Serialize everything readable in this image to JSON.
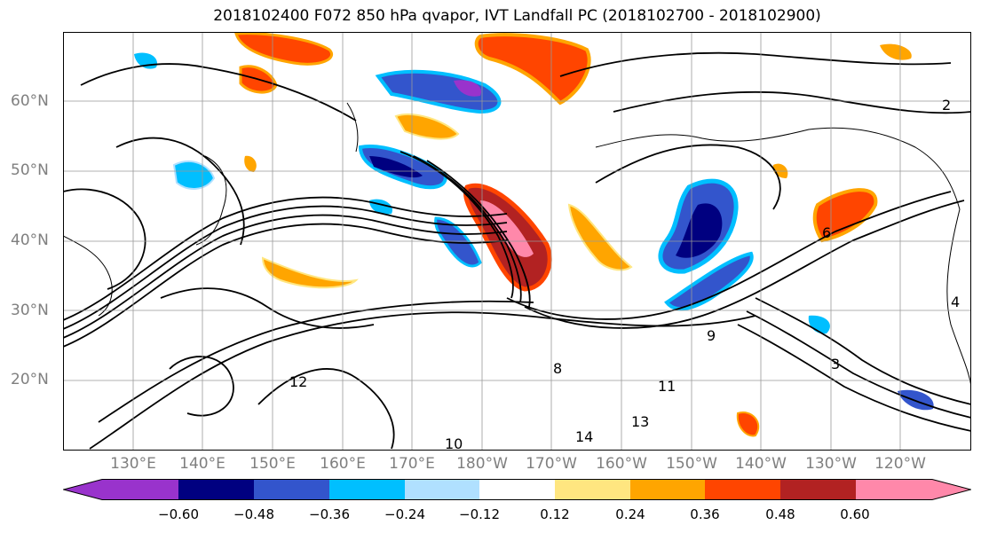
{
  "title": "2018102400 F072 850 hPa qvapor, IVT Landfall PC (2018102700 - 2018102900)",
  "lat_labels": [
    "60°N",
    "50°N",
    "40°N",
    "30°N",
    "20°N"
  ],
  "lon_labels": [
    "130°E",
    "140°E",
    "150°E",
    "160°E",
    "170°E",
    "180°W",
    "170°W",
    "160°W",
    "150°W",
    "140°W",
    "130°W",
    "120°W"
  ],
  "colorbar": {
    "colors": [
      "#9933cc",
      "#000080",
      "#3355cc",
      "#00bfff",
      "#b0e0ff",
      "#ffffff",
      "#ffe680",
      "#ffa500",
      "#ff4500",
      "#b22222",
      "#ff88aa"
    ],
    "tick_labels": [
      "−0.60",
      "−0.48",
      "−0.36",
      "−0.24",
      "−0.12",
      "0.12",
      "0.24",
      "0.36",
      "0.48",
      "0.60"
    ]
  },
  "contour_labels": [
    "10",
    "12",
    "13",
    "14",
    "11",
    "9",
    "8",
    "3",
    "2",
    "4",
    "6"
  ],
  "colors": {
    "land_line": "#000000",
    "grid": "#999999",
    "axis_text": "#7f7f7f"
  }
}
